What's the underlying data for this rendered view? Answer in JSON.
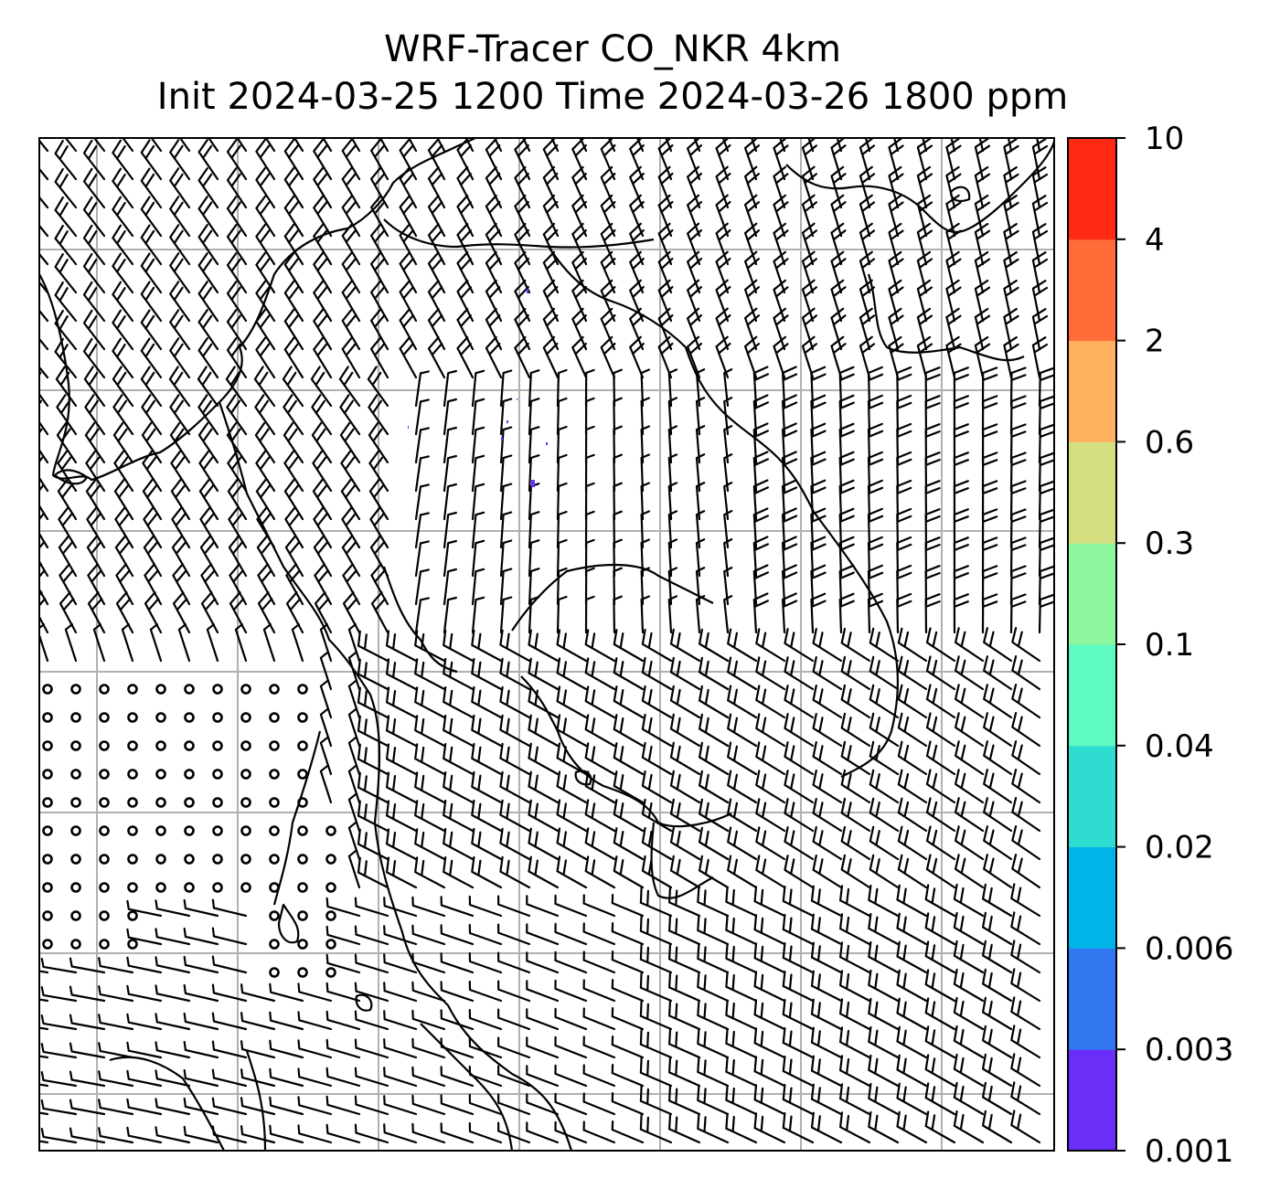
{
  "title": {
    "line1": "WRF-Tracer CO_NKR 4km",
    "line2": "Init 2024-03-25 1200 Time 2024-03-26 1800 ppm"
  },
  "colorbar": {
    "levels": [
      {
        "label": "0.001",
        "color": "#6a2ef8"
      },
      {
        "label": "0.003",
        "color": "#3377f0"
      },
      {
        "label": "0.006",
        "color": "#00b3e8"
      },
      {
        "label": "0.02",
        "color": "#2fdcd2"
      },
      {
        "label": "0.04",
        "color": "#5efac0"
      },
      {
        "label": "0.1",
        "color": "#8ef79d"
      },
      {
        "label": "0.3",
        "color": "#d3de80"
      },
      {
        "label": "0.6",
        "color": "#feb15f"
      },
      {
        "label": "2",
        "color": "#ff6c38"
      },
      {
        "label": "4",
        "color": "#ff2a14"
      },
      {
        "label": "10",
        "color": ""
      }
    ]
  },
  "map": {
    "gridlines": true,
    "wind_barbs": true,
    "calm_circles_region": "south-west",
    "tracer_specks_color": "#6a2ef8"
  }
}
